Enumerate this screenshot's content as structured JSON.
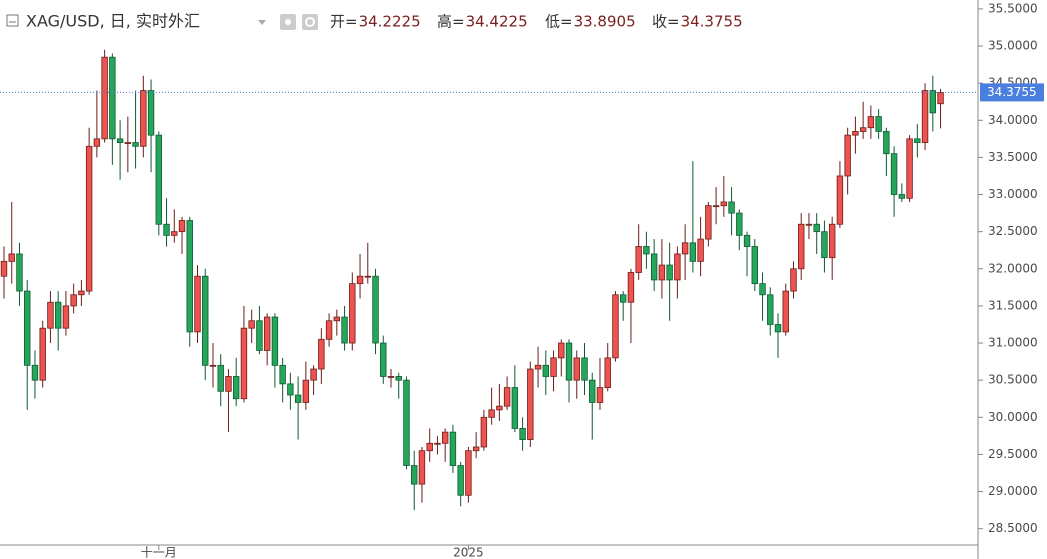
{
  "chart_data": {
    "type": "candlestick",
    "title": "XAG/USD, 日, 实时外汇",
    "ohlc_labels": [
      "开=",
      "高=",
      "低=",
      "收="
    ],
    "up_color": "#ef5350",
    "down_color": "#26a65b",
    "price_line_color": "#4a7fe0",
    "grid": false,
    "categories": [
      null,
      null,
      null,
      null,
      null,
      null,
      null,
      null,
      null,
      null,
      null,
      null,
      null,
      null,
      null,
      null,
      null,
      null,
      null,
      null,
      "十一月",
      null,
      null,
      null,
      null,
      null,
      null,
      null,
      null,
      null,
      null,
      null,
      null,
      null,
      null,
      null,
      null,
      null,
      null,
      null,
      null,
      null,
      null,
      null,
      null,
      null,
      null,
      null,
      null,
      null,
      null,
      null,
      null,
      null,
      null,
      null,
      null,
      null,
      null,
      null,
      "2025",
      null,
      null,
      null,
      null,
      null,
      null,
      null,
      null,
      null,
      null,
      null,
      null,
      null,
      null,
      null,
      null,
      null,
      null,
      null,
      null,
      null,
      null,
      null,
      null,
      null,
      null,
      null,
      null,
      null,
      null,
      null,
      null,
      null,
      null,
      null,
      null,
      null,
      null,
      null,
      null,
      null,
      null,
      null,
      null,
      null,
      null,
      null,
      null,
      null,
      null,
      null,
      null,
      null,
      null,
      null,
      null,
      null,
      null,
      null,
      null,
      null
    ],
    "open": [
      31.9,
      32.1,
      32.2,
      31.7,
      30.7,
      30.5,
      31.2,
      31.55,
      31.2,
      31.5,
      31.65,
      31.7,
      33.65,
      33.75,
      34.85,
      33.75,
      33.7,
      33.7,
      33.65,
      34.4,
      33.8,
      32.6,
      32.45,
      32.5,
      32.65,
      31.15,
      31.9,
      30.7,
      30.7,
      30.35,
      30.55,
      30.25,
      31.2,
      31.3,
      30.9,
      31.35,
      30.7,
      30.45,
      30.3,
      30.2,
      30.5,
      30.65,
      31.05,
      31.3,
      31.35,
      31.0,
      31.8,
      31.9,
      31.9,
      31.0,
      30.55,
      30.55,
      30.5,
      29.35,
      29.1,
      29.55,
      29.65,
      29.65,
      29.8,
      29.35,
      28.95,
      29.55,
      29.6,
      30.0,
      30.1,
      30.15,
      30.4,
      29.85,
      29.7,
      30.65,
      30.7,
      30.55,
      30.8,
      31.0,
      30.5,
      30.8,
      30.5,
      30.2,
      30.4,
      30.8,
      31.65,
      31.55,
      31.95,
      32.3,
      32.2,
      31.85,
      32.05,
      31.85,
      32.2,
      32.35,
      32.1,
      32.4,
      32.85,
      32.85,
      32.9,
      32.75,
      32.45,
      32.3,
      31.8,
      31.65,
      31.25,
      31.15,
      31.7,
      32.0,
      32.6,
      32.6,
      32.5,
      32.15,
      32.6,
      33.25,
      33.8,
      33.85,
      33.9,
      34.05,
      33.85,
      33.55,
      33.0,
      32.95,
      33.75,
      33.7,
      34.4,
      34.2225
    ],
    "high": [
      32.3,
      32.9,
      32.35,
      31.85,
      30.9,
      31.3,
      31.7,
      31.7,
      31.7,
      31.8,
      31.85,
      33.9,
      34.4,
      34.95,
      34.9,
      34.0,
      34.05,
      34.4,
      34.6,
      34.55,
      33.85,
      32.95,
      32.8,
      32.7,
      32.7,
      32.05,
      32.0,
      31.0,
      30.85,
      30.65,
      30.8,
      31.5,
      31.45,
      31.5,
      31.4,
      31.4,
      30.8,
      30.6,
      30.55,
      30.75,
      30.7,
      31.2,
      31.4,
      31.45,
      31.5,
      31.95,
      32.2,
      32.35,
      32.0,
      31.1,
      30.65,
      30.6,
      30.55,
      29.55,
      29.6,
      29.85,
      29.75,
      29.85,
      29.9,
      29.4,
      29.6,
      29.8,
      30.1,
      30.4,
      30.45,
      30.55,
      30.7,
      30.0,
      30.75,
      30.95,
      30.9,
      30.9,
      31.05,
      31.05,
      30.9,
      31.0,
      30.6,
      30.8,
      31.0,
      31.7,
      31.7,
      32.0,
      32.6,
      32.5,
      32.4,
      32.4,
      32.35,
      32.3,
      32.6,
      33.45,
      32.7,
      32.9,
      33.1,
      33.25,
      33.1,
      32.8,
      32.5,
      32.4,
      31.95,
      31.75,
      31.4,
      31.8,
      32.1,
      32.75,
      32.75,
      32.75,
      32.65,
      32.7,
      33.45,
      33.9,
      34.05,
      34.25,
      34.2,
      34.15,
      33.9,
      33.65,
      33.15,
      33.8,
      33.95,
      34.5,
      34.6,
      34.4225
    ],
    "low": [
      31.6,
      31.8,
      31.5,
      30.1,
      30.25,
      30.4,
      31.0,
      30.9,
      31.1,
      31.4,
      31.5,
      31.65,
      33.5,
      33.7,
      33.4,
      33.2,
      33.3,
      33.35,
      33.5,
      33.3,
      32.45,
      32.3,
      32.35,
      32.2,
      30.95,
      31.0,
      30.5,
      30.4,
      30.15,
      29.8,
      30.15,
      30.2,
      31.0,
      30.85,
      30.7,
      30.4,
      30.2,
      30.1,
      29.7,
      30.1,
      30.3,
      30.45,
      30.95,
      31.1,
      30.9,
      30.9,
      31.6,
      31.8,
      30.85,
      30.45,
      30.4,
      30.25,
      29.3,
      28.75,
      28.85,
      29.4,
      29.5,
      29.4,
      29.25,
      28.8,
      28.85,
      29.45,
      29.55,
      29.9,
      29.95,
      30.1,
      29.8,
      29.55,
      29.6,
      30.4,
      30.3,
      30.35,
      30.55,
      30.2,
      30.25,
      30.3,
      29.7,
      30.1,
      30.35,
      30.75,
      31.3,
      31.0,
      31.85,
      32.0,
      31.7,
      31.6,
      31.3,
      31.6,
      31.85,
      31.95,
      31.9,
      32.3,
      32.6,
      32.7,
      32.45,
      32.25,
      31.9,
      31.7,
      31.3,
      31.1,
      30.8,
      31.1,
      31.6,
      31.85,
      32.4,
      32.2,
      31.95,
      31.85,
      32.55,
      33.0,
      33.55,
      33.75,
      33.75,
      33.75,
      33.25,
      32.7,
      32.9,
      32.9,
      33.5,
      33.6,
      33.85,
      33.8905
    ],
    "close": [
      32.1,
      32.2,
      31.7,
      30.7,
      30.5,
      31.2,
      31.55,
      31.2,
      31.5,
      31.65,
      31.7,
      33.65,
      33.75,
      34.85,
      33.75,
      33.7,
      33.7,
      33.65,
      34.4,
      33.8,
      32.6,
      32.45,
      32.5,
      32.65,
      31.15,
      31.9,
      30.7,
      30.7,
      30.35,
      30.55,
      30.25,
      31.2,
      31.3,
      30.9,
      31.35,
      30.7,
      30.45,
      30.3,
      30.2,
      30.5,
      30.65,
      31.05,
      31.3,
      31.35,
      31.0,
      31.8,
      31.9,
      31.9,
      31.0,
      30.55,
      30.55,
      30.5,
      29.35,
      29.1,
      29.55,
      29.65,
      29.65,
      29.8,
      29.35,
      28.95,
      29.55,
      29.6,
      30.0,
      30.1,
      30.15,
      30.4,
      29.85,
      29.7,
      30.65,
      30.7,
      30.55,
      30.8,
      31.0,
      30.5,
      30.8,
      30.5,
      30.2,
      30.4,
      30.8,
      31.65,
      31.55,
      31.95,
      32.3,
      32.2,
      31.85,
      32.05,
      31.85,
      32.2,
      32.35,
      32.1,
      32.4,
      32.85,
      32.85,
      32.9,
      32.75,
      32.45,
      32.3,
      31.8,
      31.65,
      31.25,
      31.15,
      31.7,
      32.0,
      32.6,
      32.6,
      32.5,
      32.15,
      32.6,
      33.25,
      33.8,
      33.85,
      33.9,
      34.05,
      33.85,
      33.55,
      33.0,
      32.95,
      33.75,
      33.7,
      34.4,
      34.1,
      34.3755
    ],
    "ylim": [
      28.28,
      35.62
    ],
    "yticks": [
      {
        "value": 28.5,
        "label": "28.5000"
      },
      {
        "value": 29,
        "label": "29.0000"
      },
      {
        "value": 29.5,
        "label": "29.5000"
      },
      {
        "value": 30,
        "label": "30.0000"
      },
      {
        "value": 30.5,
        "label": "30.5000"
      },
      {
        "value": 31,
        "label": "31.0000"
      },
      {
        "value": 31.5,
        "label": "31.5000"
      },
      {
        "value": 32,
        "label": "32.0000"
      },
      {
        "value": 32.5,
        "label": "32.5000"
      },
      {
        "value": 33,
        "label": "33.0000"
      },
      {
        "value": 33.5,
        "label": "33.5000"
      },
      {
        "value": 34,
        "label": "34.0000"
      },
      {
        "value": 34.5,
        "label": "34.5000"
      },
      {
        "value": 35,
        "label": "35.0000"
      },
      {
        "value": 35.5,
        "label": "35.5000"
      }
    ]
  }
}
